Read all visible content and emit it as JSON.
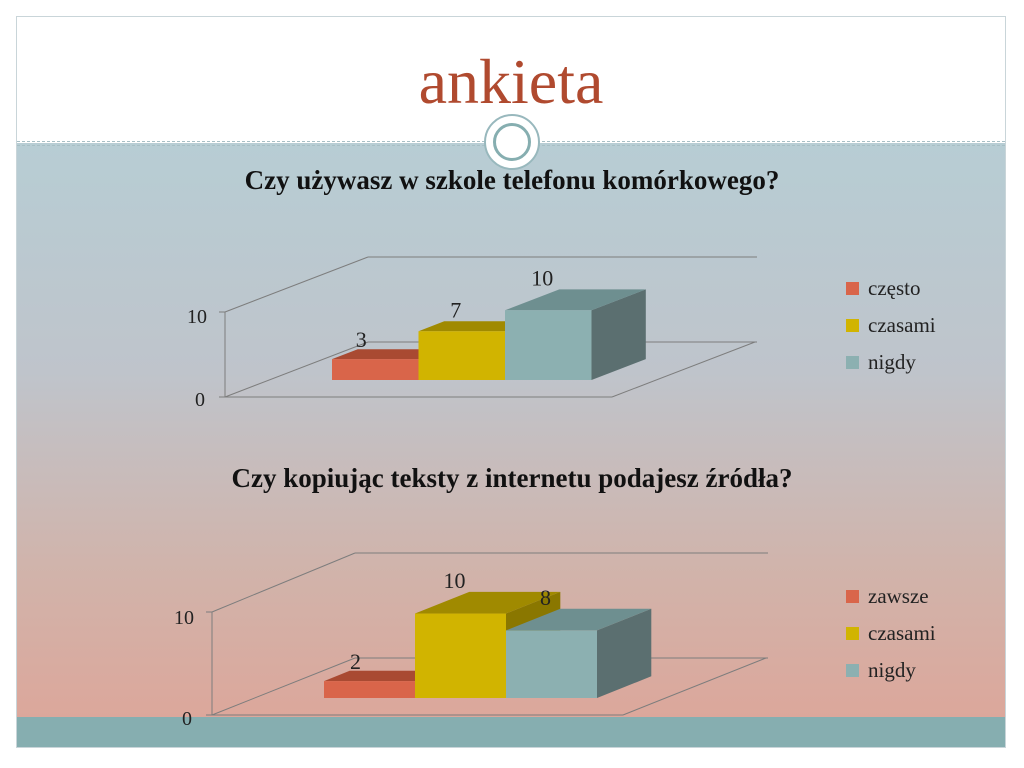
{
  "slide": {
    "title": "ankieta"
  },
  "colors": {
    "title": "#b04a2f",
    "series_czesto": "#d9654a",
    "series_czasami": "#d1b400",
    "series_nigdy": "#8cb0b1"
  },
  "chart_data": [
    {
      "type": "bar",
      "title": "Czy używasz w szkole telefonu komórkowego?",
      "categories": [
        "często",
        "czasami",
        "nigdy"
      ],
      "values": [
        3,
        7,
        10
      ],
      "value_labels": [
        "3",
        "7",
        "10"
      ],
      "y_ticks": [
        "0",
        "10"
      ],
      "ylim": [
        0,
        10
      ],
      "legend": [
        "często",
        "czasami",
        "nigdy"
      ],
      "legend_position": "right",
      "style": "3d"
    },
    {
      "type": "bar",
      "title": "Czy kopiując teksty z internetu podajesz źródła?",
      "categories": [
        "zawsze",
        "czasami",
        "nigdy"
      ],
      "values": [
        2,
        10,
        8
      ],
      "value_labels": [
        "2",
        "10",
        "8"
      ],
      "y_ticks": [
        "0",
        "10"
      ],
      "ylim": [
        0,
        10
      ],
      "legend": [
        "zawsze",
        "czasami",
        "nigdy"
      ],
      "legend_position": "right",
      "style": "3d"
    }
  ]
}
